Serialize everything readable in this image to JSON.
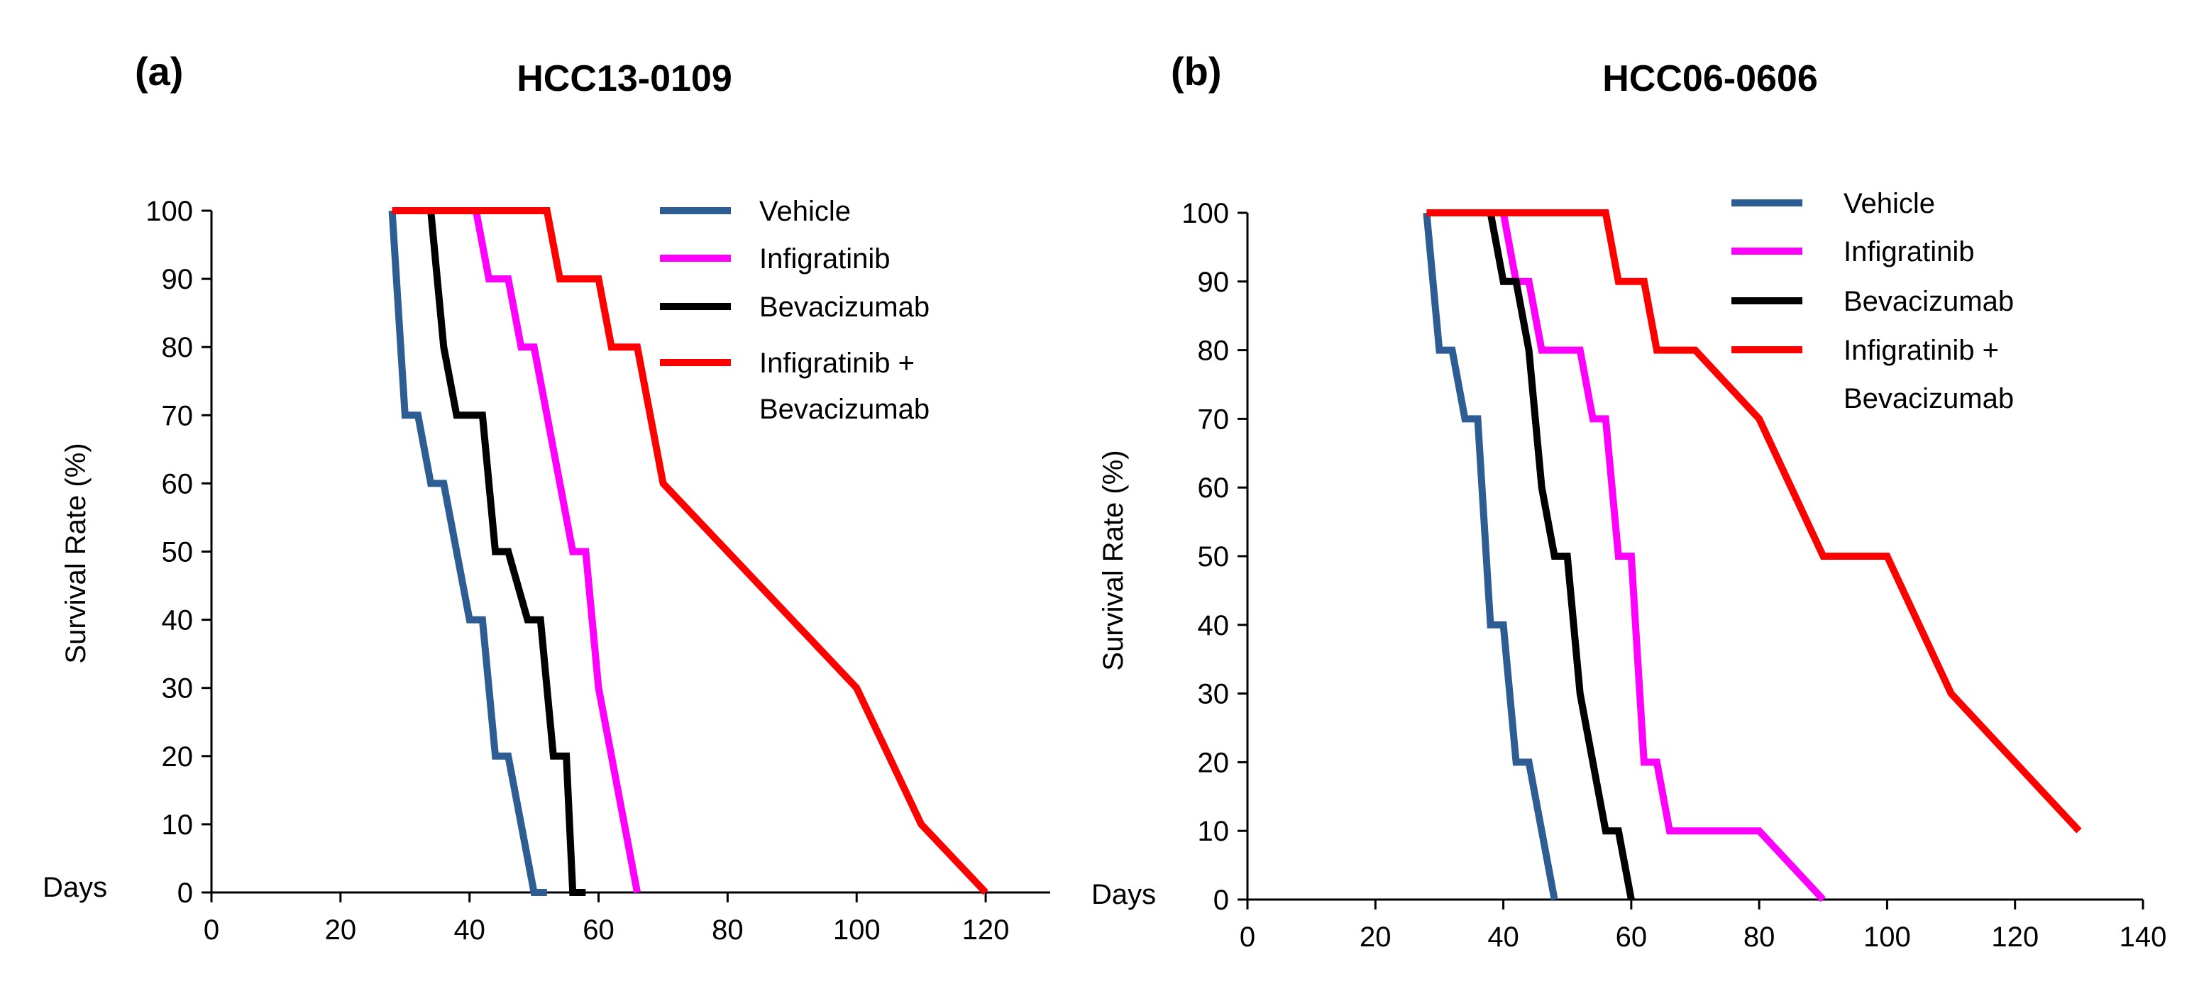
{
  "chart_data": [
    {
      "type": "line",
      "panel_label": "(a)",
      "title": "HCC13-0109",
      "xlabel": "",
      "ylabel": "Survival Rate (%)",
      "days_label": "Days",
      "xlim": [
        0,
        130
      ],
      "ylim": [
        0,
        100
      ],
      "xticks": [
        0,
        20,
        40,
        60,
        80,
        100,
        120
      ],
      "yticks": [
        0,
        10,
        20,
        30,
        40,
        50,
        60,
        70,
        80,
        90,
        100
      ],
      "legend_position": "top-right",
      "series": [
        {
          "name": "Vehicle",
          "color": "#2E5D93",
          "points": [
            [
              28,
              100
            ],
            [
              30,
              70
            ],
            [
              32,
              70
            ],
            [
              34,
              60
            ],
            [
              36,
              60
            ],
            [
              40,
              40
            ],
            [
              42,
              40
            ],
            [
              44,
              20
            ],
            [
              46,
              20
            ],
            [
              50,
              0
            ],
            [
              52,
              0
            ]
          ]
        },
        {
          "name": "Infigratinib",
          "color": "#FF00FF",
          "points": [
            [
              41,
              100
            ],
            [
              43,
              90
            ],
            [
              46,
              90
            ],
            [
              48,
              80
            ],
            [
              50,
              80
            ],
            [
              56,
              50
            ],
            [
              58,
              50
            ],
            [
              60,
              30
            ],
            [
              66,
              0
            ]
          ]
        },
        {
          "name": "Bevacizumab",
          "color": "#000000",
          "points": [
            [
              34,
              100
            ],
            [
              36,
              80
            ],
            [
              38,
              70
            ],
            [
              42,
              70
            ],
            [
              44,
              50
            ],
            [
              46,
              50
            ],
            [
              49,
              40
            ],
            [
              51,
              40
            ],
            [
              53,
              20
            ],
            [
              55,
              20
            ],
            [
              56,
              0
            ],
            [
              58,
              0
            ]
          ]
        },
        {
          "name": "Infigratinib + Bevacizumab",
          "legend_lines": [
            "Infigratinib +",
            "Bevacizumab"
          ],
          "color": "#FF0000",
          "points": [
            [
              28,
              100
            ],
            [
              52,
              100
            ],
            [
              54,
              90
            ],
            [
              60,
              90
            ],
            [
              62,
              80
            ],
            [
              66,
              80
            ],
            [
              70,
              60
            ],
            [
              100,
              30
            ],
            [
              110,
              10
            ],
            [
              120,
              0
            ]
          ]
        }
      ]
    },
    {
      "type": "line",
      "panel_label": "(b)",
      "title": "HCC06-0606",
      "xlabel": "",
      "ylabel": "Survival Rate (%)",
      "days_label": "Days",
      "xlim": [
        0,
        140
      ],
      "ylim": [
        0,
        100
      ],
      "xticks": [
        0,
        20,
        40,
        60,
        80,
        100,
        120,
        140
      ],
      "yticks": [
        0,
        10,
        20,
        30,
        40,
        50,
        60,
        70,
        80,
        90,
        100
      ],
      "legend_position": "top-right",
      "series": [
        {
          "name": "Vehicle",
          "color": "#2E5D93",
          "points": [
            [
              28,
              100
            ],
            [
              30,
              80
            ],
            [
              32,
              80
            ],
            [
              34,
              70
            ],
            [
              36,
              70
            ],
            [
              38,
              40
            ],
            [
              40,
              40
            ],
            [
              42,
              20
            ],
            [
              44,
              20
            ],
            [
              48,
              0
            ]
          ]
        },
        {
          "name": "Infigratinib",
          "color": "#FF00FF",
          "points": [
            [
              40,
              100
            ],
            [
              42,
              90
            ],
            [
              44,
              90
            ],
            [
              46,
              80
            ],
            [
              52,
              80
            ],
            [
              54,
              70
            ],
            [
              56,
              70
            ],
            [
              58,
              50
            ],
            [
              60,
              50
            ],
            [
              62,
              20
            ],
            [
              64,
              20
            ],
            [
              66,
              10
            ],
            [
              80,
              10
            ],
            [
              90,
              0
            ]
          ]
        },
        {
          "name": "Bevacizumab",
          "color": "#000000",
          "points": [
            [
              38,
              100
            ],
            [
              40,
              90
            ],
            [
              42,
              90
            ],
            [
              44,
              80
            ],
            [
              46,
              60
            ],
            [
              48,
              50
            ],
            [
              50,
              50
            ],
            [
              52,
              30
            ],
            [
              56,
              10
            ],
            [
              58,
              10
            ],
            [
              60,
              0
            ]
          ]
        },
        {
          "name": "Infigratinib + Bevacizumab",
          "legend_lines": [
            "Infigratinib +",
            "Bevacizumab"
          ],
          "color": "#FF0000",
          "points": [
            [
              28,
              100
            ],
            [
              56,
              100
            ],
            [
              58,
              90
            ],
            [
              62,
              90
            ],
            [
              64,
              80
            ],
            [
              66,
              80
            ],
            [
              70,
              80
            ],
            [
              80,
              70
            ],
            [
              90,
              50
            ],
            [
              100,
              50
            ],
            [
              110,
              30
            ],
            [
              130,
              10
            ]
          ]
        }
      ]
    }
  ]
}
